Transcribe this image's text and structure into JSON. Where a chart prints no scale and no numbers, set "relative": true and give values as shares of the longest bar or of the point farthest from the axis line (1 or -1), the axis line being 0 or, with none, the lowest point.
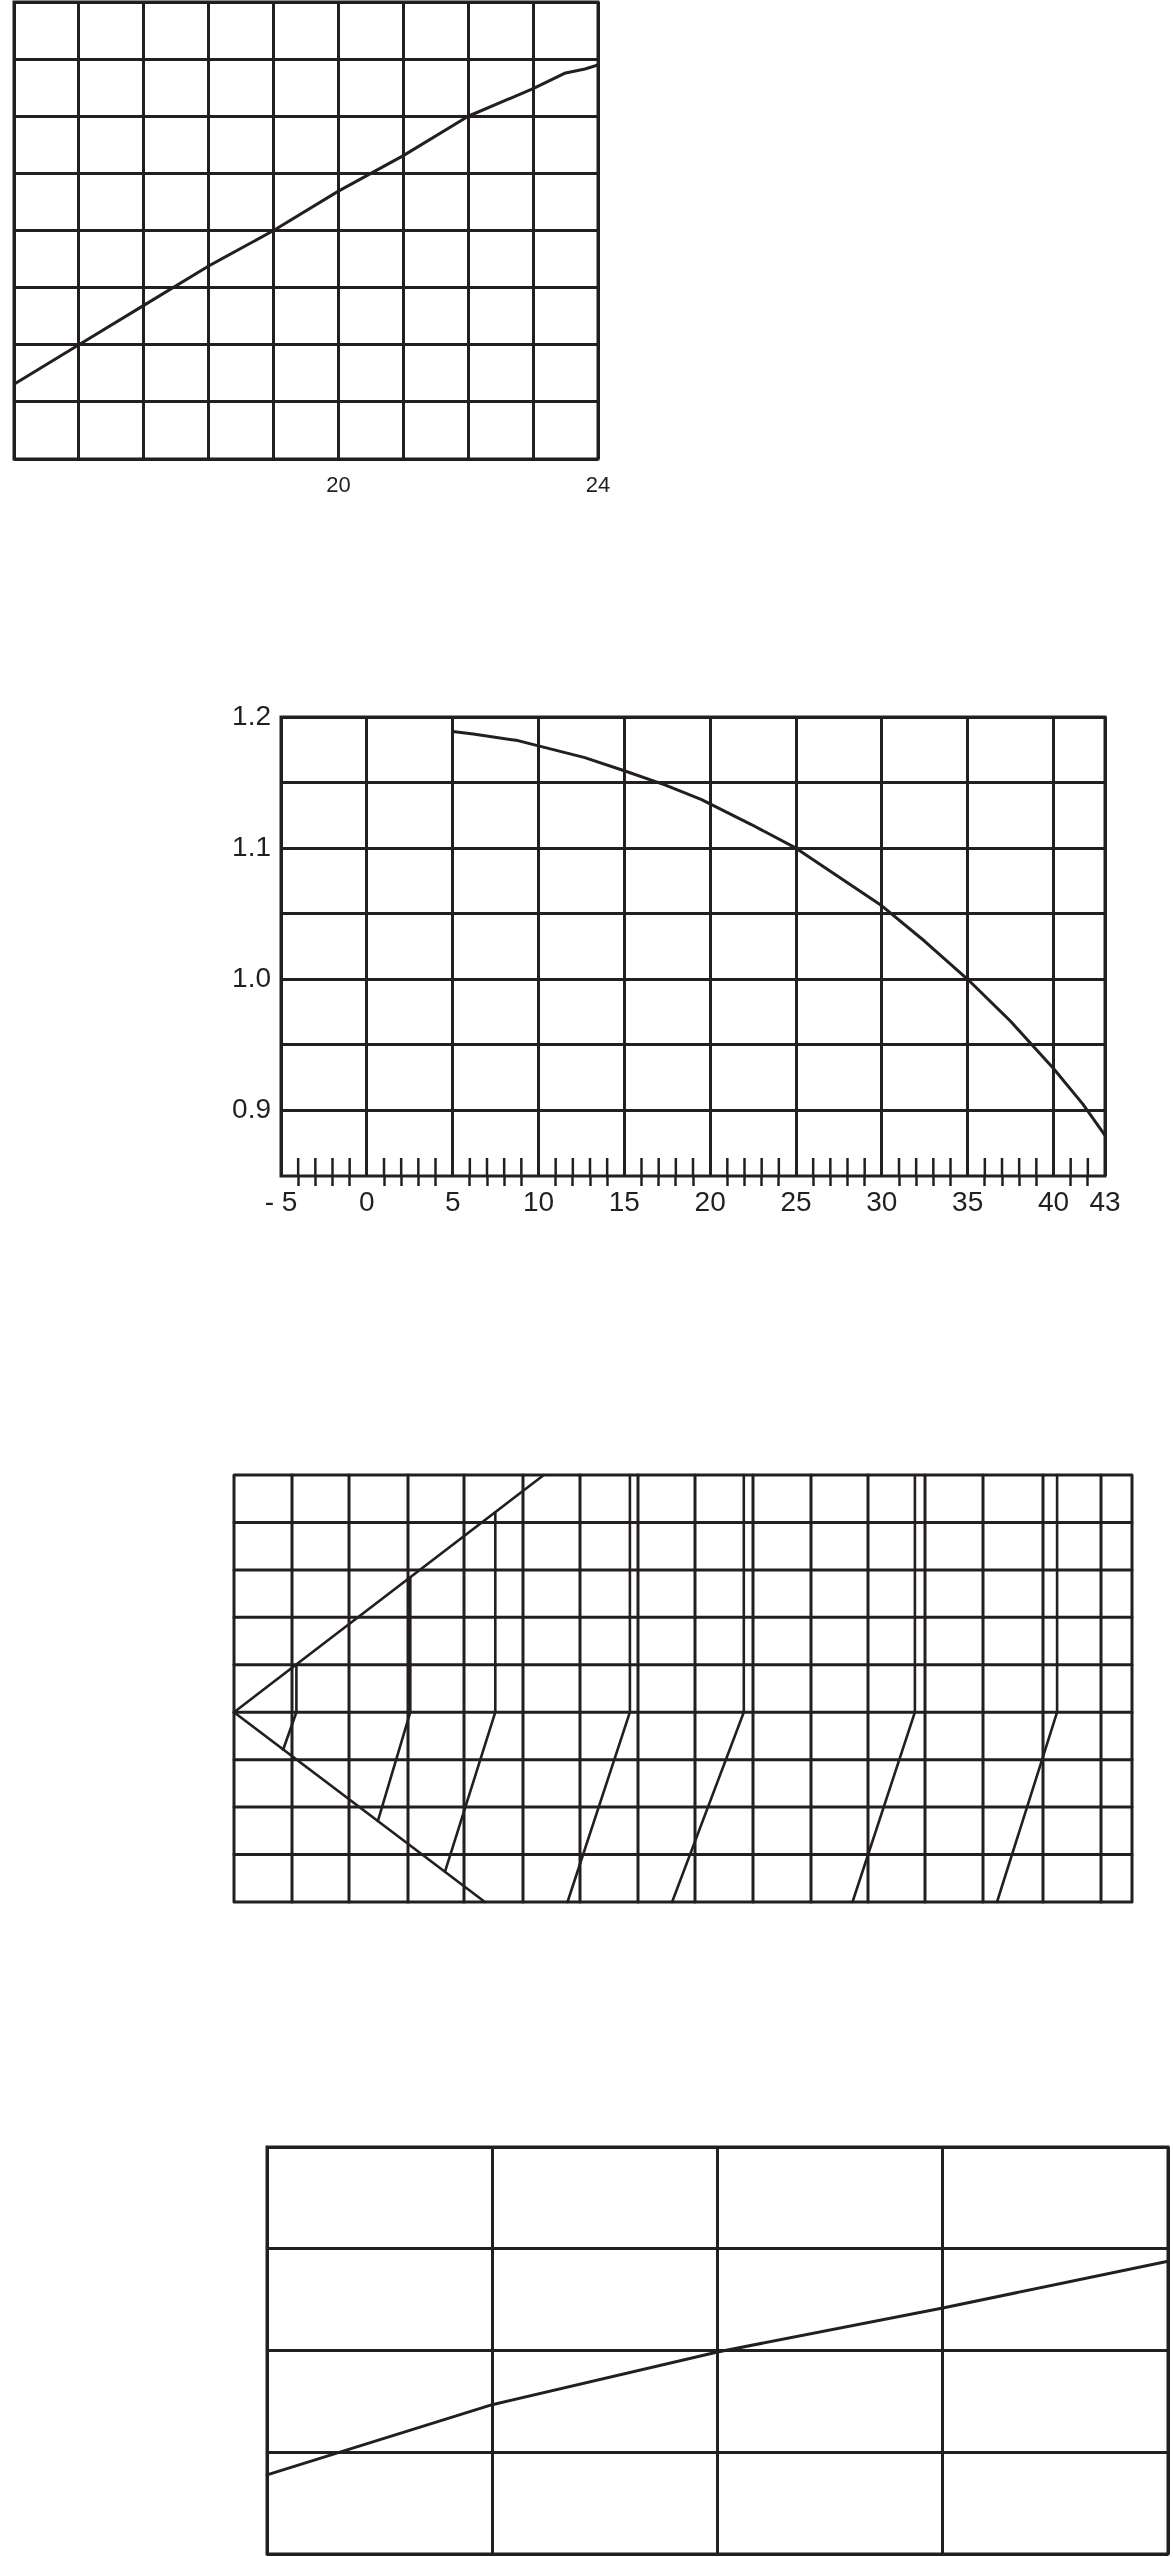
{
  "chart_data": [
    {
      "type": "line",
      "relative": true,
      "x": [
        15,
        16,
        17,
        18,
        19,
        20,
        21,
        22,
        23,
        23.5,
        23.8,
        24
      ],
      "values": [
        0.19,
        0.29,
        0.39,
        0.49,
        0.58,
        0.68,
        0.77,
        0.87,
        0.94,
        0.98,
        0.99,
        1
      ],
      "color": "#231f20",
      "xlim": [
        15,
        24
      ],
      "xticks": [
        {
          "value": 15,
          "label": null
        },
        {
          "value": 16,
          "label": null
        },
        {
          "value": 17,
          "label": null
        },
        {
          "value": 18,
          "label": null
        },
        {
          "value": 19,
          "label": null
        },
        20,
        {
          "value": 21,
          "label": null
        },
        {
          "value": 22,
          "label": null
        },
        {
          "value": 23,
          "label": null
        },
        24
      ],
      "grid": true,
      "tick_labels": "x",
      "marker": "none"
    },
    {
      "type": "line",
      "x": [
        5,
        6.2,
        8.8,
        10,
        12.7,
        15,
        17.4,
        19.5,
        22.4,
        25,
        27.5,
        30,
        32.5,
        35,
        37.5,
        40,
        41.7,
        43
      ],
      "values": [
        1.189,
        1.187,
        1.182,
        1.178,
        1.169,
        1.159,
        1.148,
        1.137,
        1.118,
        1.1,
        1.078,
        1.056,
        1.029,
        1.0,
        0.968,
        0.932,
        0.905,
        0.881
      ],
      "color": "#231f20",
      "xlim": [
        -5,
        43
      ],
      "xticks": [
        {
          "value": -5,
          "label": "- 5"
        },
        {
          "value": -4,
          "label": null
        },
        {
          "value": -3,
          "label": null
        },
        {
          "value": -2,
          "label": null
        },
        {
          "value": -1,
          "label": null
        },
        0,
        {
          "value": 1,
          "label": null
        },
        {
          "value": 2,
          "label": null
        },
        {
          "value": 3,
          "label": null
        },
        {
          "value": 4,
          "label": null
        },
        5,
        {
          "value": 6,
          "label": null
        },
        {
          "value": 7,
          "label": null
        },
        {
          "value": 8,
          "label": null
        },
        {
          "value": 9,
          "label": null
        },
        10,
        {
          "value": 11,
          "label": null
        },
        {
          "value": 12,
          "label": null
        },
        {
          "value": 13,
          "label": null
        },
        {
          "value": 14,
          "label": null
        },
        15,
        {
          "value": 16,
          "label": null
        },
        {
          "value": 17,
          "label": null
        },
        {
          "value": 18,
          "label": null
        },
        {
          "value": 19,
          "label": null
        },
        20,
        {
          "value": 21,
          "label": null
        },
        {
          "value": 22,
          "label": null
        },
        {
          "value": 23,
          "label": null
        },
        {
          "value": 24,
          "label": null
        },
        25,
        {
          "value": 26,
          "label": null
        },
        {
          "value": 27,
          "label": null
        },
        {
          "value": 28,
          "label": null
        },
        {
          "value": 29,
          "label": null
        },
        30,
        {
          "value": 31,
          "label": null
        },
        {
          "value": 32,
          "label": null
        },
        {
          "value": 33,
          "label": null
        },
        {
          "value": 34,
          "label": null
        },
        35,
        {
          "value": 36,
          "label": null
        },
        {
          "value": 37,
          "label": null
        },
        {
          "value": 38,
          "label": null
        },
        {
          "value": 39,
          "label": null
        },
        40,
        {
          "value": 41,
          "label": null
        },
        {
          "value": 42,
          "label": null
        },
        43
      ],
      "ylim": [
        0.85,
        1.2
      ],
      "yticks": [
        0.9,
        {
          "value": 0.95,
          "label": null
        },
        {
          "value": 1.0,
          "label": "1.0"
        },
        {
          "value": 1.05,
          "label": null
        },
        1.1,
        {
          "value": 1.15,
          "label": null
        },
        1.2
      ],
      "grid": true,
      "marker": "none"
    },
    {
      "type": "other"
    },
    {
      "type": "line",
      "relative": true,
      "categories": [
        null,
        null,
        null,
        null,
        null
      ],
      "values": [
        0.27,
        0.51,
        0.69,
        0.84,
        1
      ],
      "color": "#231f20",
      "grid": true,
      "tick_labels": false,
      "marker": "none"
    }
  ]
}
